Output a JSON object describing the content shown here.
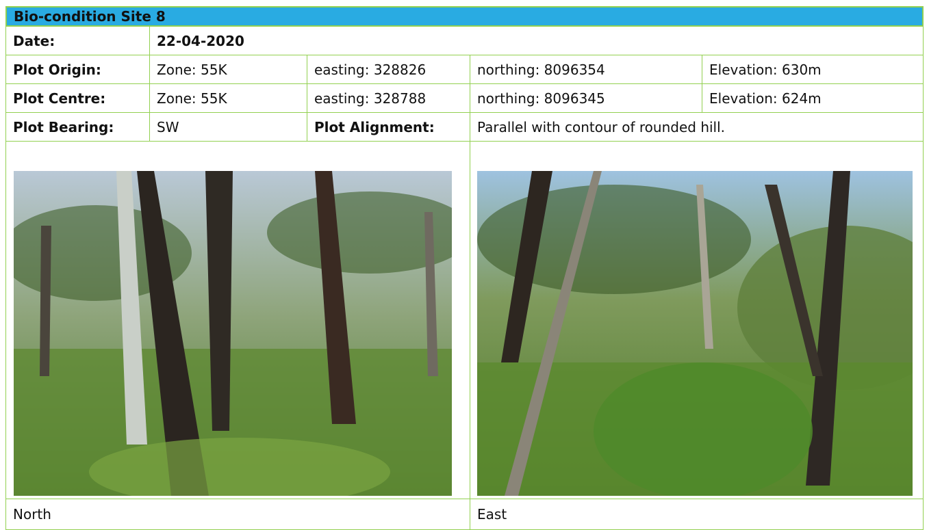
{
  "header": {
    "title": "Bio-condition Site 8"
  },
  "table": {
    "rows": [
      [
        "Date:",
        "22-04-2020"
      ],
      [
        "Plot Origin:",
        "Zone: 55K",
        "easting: 328826",
        "northing: 8096354",
        "Elevation: 630m"
      ],
      [
        "Plot Centre:",
        "Zone: 55K",
        "easting: 328788",
        "northing: 8096345",
        "Elevation: 624m"
      ],
      [
        "Plot Bearing:",
        "SW",
        "Plot Alignment:",
        "Parallel with contour of rounded hill."
      ]
    ]
  },
  "photos": [
    {
      "caption": "North"
    },
    {
      "caption": "East"
    }
  ]
}
